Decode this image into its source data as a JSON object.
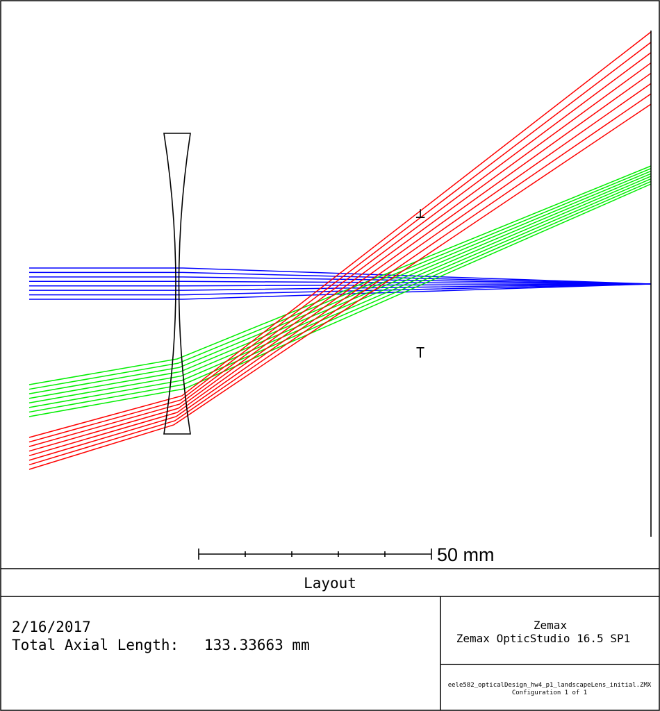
{
  "title": "Layout",
  "scale_bar": {
    "label": "50 mm"
  },
  "colors": {
    "field1": "#0000ff",
    "field2": "#00ee00",
    "field3": "#ff0000",
    "outline": "#000000"
  },
  "marks": {
    "top": "┴",
    "bottom": "T"
  },
  "info": {
    "date": "2/16/2017",
    "axial_length_label": "Total Axial Length:",
    "axial_length_value": "133.33663 mm"
  },
  "vendor": {
    "company": "Zemax",
    "product": "Zemax OpticStudio 16.5 SP1"
  },
  "file": {
    "name": "eele582_opticalDesign_hw4_p1_landscapeLens_initial.ZMX",
    "config": "Configuration 1 of 1"
  }
}
